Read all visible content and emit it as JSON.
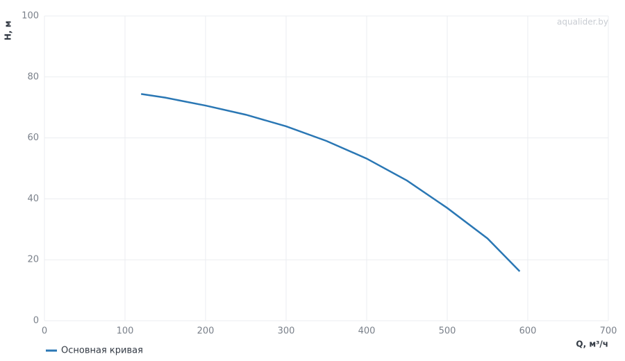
{
  "chart_data": {
    "type": "line",
    "watermark": "aqualider.by",
    "x_label": "Q, м³/ч",
    "y_label": "H, м",
    "x": [
      120,
      150,
      200,
      250,
      300,
      350,
      400,
      450,
      500,
      550,
      590
    ],
    "series": [
      {
        "name": "Основная кривая",
        "color": "#2a77b4",
        "values": [
          74.4,
          73.2,
          70.6,
          67.6,
          63.8,
          59.0,
          53.2,
          46.0,
          37.0,
          27.0,
          16.2
        ]
      }
    ],
    "xlim": [
      0,
      700
    ],
    "xticks": [
      0,
      100,
      200,
      300,
      400,
      500,
      600,
      700
    ],
    "ylim": [
      0,
      100
    ],
    "yticks": [
      0,
      20,
      40,
      60,
      80,
      100
    ],
    "grid": true,
    "legend": "bottom-left"
  }
}
